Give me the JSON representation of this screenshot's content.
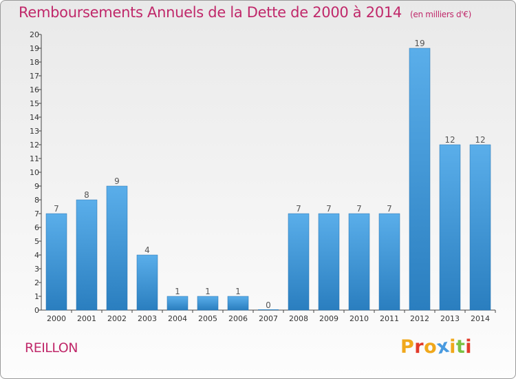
{
  "header": {
    "title": "Remboursements Annuels de la Dette de 2000 à 2014",
    "subtitle": "(en milliers d'€)"
  },
  "footer": {
    "commune": "REILLON",
    "logo": "Proxiti"
  },
  "colors": {
    "title": "#c0286a",
    "bar_light": "#5aaeea",
    "bar_dark": "#2a7ebf",
    "logo_letters": [
      "#f0a81c",
      "#e23a2a",
      "#f0a81c",
      "#4a9be0",
      "#f0a81c",
      "#7ac143",
      "#e23a2a"
    ]
  },
  "chart_data": {
    "type": "bar",
    "title": "Remboursements Annuels de la Dette de 2000 à 2014",
    "unit": "(en milliers d'€)",
    "categories": [
      "2000",
      "2001",
      "2002",
      "2003",
      "2004",
      "2005",
      "2006",
      "2007",
      "2008",
      "2009",
      "2010",
      "2011",
      "2012",
      "2013",
      "2014"
    ],
    "values": [
      7,
      8,
      9,
      4,
      1,
      1,
      1,
      0,
      7,
      7,
      7,
      7,
      19,
      12,
      12
    ],
    "yticks": [
      "0",
      "1",
      "2",
      "3",
      "4",
      "5",
      "6",
      "7",
      "8",
      "9",
      "10",
      "11",
      "12",
      "13",
      "14",
      "15",
      "16",
      "17",
      "18",
      "19",
      "20"
    ],
    "ylim": [
      0,
      20
    ],
    "xlabel": "",
    "ylabel": "",
    "grid": false
  }
}
